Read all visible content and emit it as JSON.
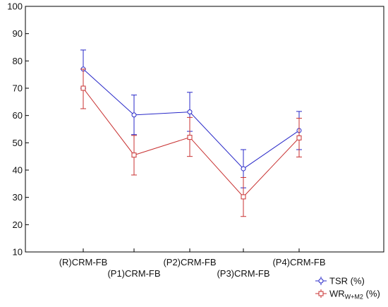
{
  "chart_data": {
    "type": "line",
    "categories": [
      "(R)CRM-FB",
      "(P1)CRM-FB",
      "(P2)CRM-FB",
      "(P3)CRM-FB",
      "(P4)CRM-FB"
    ],
    "ylim": [
      10,
      100
    ],
    "yticks": [
      10,
      20,
      30,
      40,
      50,
      60,
      70,
      80,
      90,
      100
    ],
    "grid": false,
    "legend_position": "bottom-right",
    "series": [
      {
        "name": "TSR (%)",
        "color": "#2828c8",
        "marker": "circle",
        "values": [
          77,
          60.2,
          61.3,
          40.5,
          54.5
        ],
        "err_low": [
          70,
          53,
          54.2,
          33.5,
          47.5
        ],
        "err_high": [
          84,
          67.5,
          68.5,
          47.5,
          61.5
        ]
      },
      {
        "name": "WR",
        "name_sub": "W+M2",
        "name_suffix": " (%)",
        "color": "#c83232",
        "marker": "square",
        "values": [
          70,
          45.5,
          52,
          30.2,
          51.8
        ],
        "err_low": [
          62.5,
          38.2,
          45,
          23,
          44.8
        ],
        "err_high": [
          77,
          52.7,
          59.3,
          37.3,
          59
        ]
      }
    ]
  }
}
